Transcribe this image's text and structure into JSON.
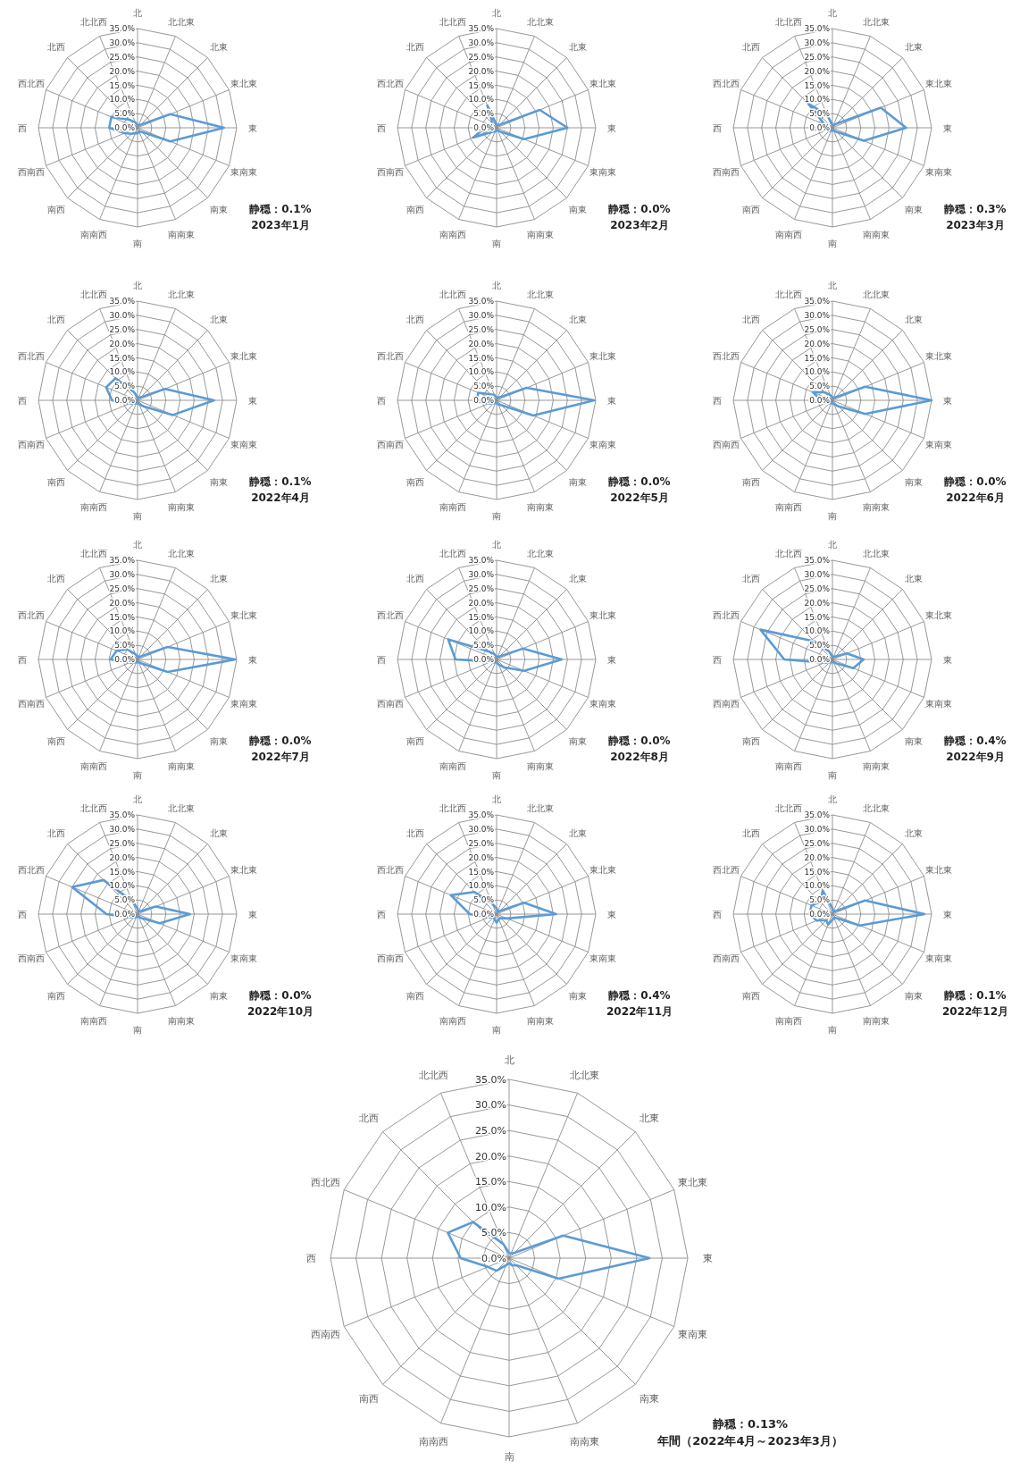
{
  "chart_data": [
    {
      "type": "radar",
      "categories": [
        "北",
        "北北東",
        "北東",
        "東北東",
        "東",
        "東南東",
        "南東",
        "南南東",
        "南",
        "南南西",
        "南西",
        "西南西",
        "西",
        "西北西",
        "北西",
        "北北西"
      ],
      "series": [
        {
          "color": "#5b9bd5",
          "values": [
            1,
            1,
            1.5,
            12.5,
            30.5,
            12.5,
            2,
            1.5,
            2,
            2,
            3,
            5,
            10,
            10,
            4,
            2
          ]
        }
      ],
      "ylim": [
        0,
        35
      ],
      "yticks": [
        {
          "value": 0,
          "label": "0.0%"
        },
        {
          "value": 5,
          "label": "5.0%"
        },
        {
          "value": 10,
          "label": "10.0%"
        },
        {
          "value": 15,
          "label": "15.0%"
        },
        {
          "value": 20,
          "label": "20.0%"
        },
        {
          "value": 25,
          "label": "25.0%"
        },
        {
          "value": 30,
          "label": "30.0%"
        },
        {
          "value": 35,
          "label": "35.0%"
        }
      ],
      "grid": true,
      "marker": "none",
      "annotations": [
        "静穏：0.1%",
        "2023年1月"
      ]
    },
    {
      "type": "radar",
      "categories": [
        "北",
        "北北東",
        "北東",
        "東北東",
        "東",
        "東南東",
        "南東",
        "南南東",
        "南",
        "南南西",
        "南西",
        "西南西",
        "西",
        "西北西",
        "北西",
        "北北西"
      ],
      "series": [
        {
          "color": "#5b9bd5",
          "values": [
            1,
            1,
            1.5,
            16.5,
            25,
            10.5,
            2,
            1,
            1,
            1.5,
            2,
            9,
            4,
            2,
            2,
            8.5
          ]
        }
      ],
      "ylim": [
        0,
        35
      ],
      "yticks": [
        {
          "value": 0,
          "label": "0.0%"
        },
        {
          "value": 5,
          "label": "5.0%"
        },
        {
          "value": 10,
          "label": "10.0%"
        },
        {
          "value": 15,
          "label": "15.0%"
        },
        {
          "value": 20,
          "label": "20.0%"
        },
        {
          "value": 25,
          "label": "25.0%"
        },
        {
          "value": 30,
          "label": "30.0%"
        },
        {
          "value": 35,
          "label": "35.0%"
        }
      ],
      "grid": true,
      "marker": "none",
      "annotations": [
        "静穏：0.0%",
        "2023年2月"
      ]
    },
    {
      "type": "radar",
      "categories": [
        "北",
        "北北東",
        "北東",
        "東北東",
        "東",
        "東南東",
        "南東",
        "南南東",
        "南",
        "南南西",
        "南西",
        "西南西",
        "西",
        "西北西",
        "北西",
        "北北西"
      ],
      "series": [
        {
          "color": "#5b9bd5",
          "values": [
            1,
            1,
            2,
            18.5,
            26,
            12,
            2,
            1,
            1,
            1,
            1.5,
            2,
            2,
            3,
            12,
            5
          ]
        }
      ],
      "ylim": [
        0,
        35
      ],
      "yticks": [
        {
          "value": 0,
          "label": "0.0%"
        },
        {
          "value": 5,
          "label": "5.0%"
        },
        {
          "value": 10,
          "label": "10.0%"
        },
        {
          "value": 15,
          "label": "15.0%"
        },
        {
          "value": 20,
          "label": "20.0%"
        },
        {
          "value": 25,
          "label": "25.0%"
        },
        {
          "value": 30,
          "label": "30.0%"
        },
        {
          "value": 35,
          "label": "35.0%"
        }
      ],
      "grid": true,
      "marker": "none",
      "annotations": [
        "静穏：0.3%",
        "2023年3月"
      ]
    },
    {
      "type": "radar",
      "categories": [
        "北",
        "北北東",
        "北東",
        "東北東",
        "東",
        "東南東",
        "南東",
        "南南東",
        "南",
        "南南西",
        "南西",
        "西南西",
        "西",
        "西北西",
        "北西",
        "北北西"
      ],
      "series": [
        {
          "color": "#5b9bd5",
          "values": [
            1,
            1,
            1.5,
            10.5,
            27,
            13.5,
            3,
            1.5,
            1,
            1,
            1.5,
            3,
            9,
            12,
            11,
            3
          ]
        }
      ],
      "ylim": [
        0,
        35
      ],
      "yticks": [
        {
          "value": 0,
          "label": "0.0%"
        },
        {
          "value": 5,
          "label": "5.0%"
        },
        {
          "value": 10,
          "label": "10.0%"
        },
        {
          "value": 15,
          "label": "15.0%"
        },
        {
          "value": 20,
          "label": "20.0%"
        },
        {
          "value": 25,
          "label": "25.0%"
        },
        {
          "value": 30,
          "label": "30.0%"
        },
        {
          "value": 35,
          "label": "35.0%"
        }
      ],
      "grid": true,
      "marker": "none",
      "annotations": [
        "静穏：0.1%",
        "2022年4月"
      ]
    },
    {
      "type": "radar",
      "categories": [
        "北",
        "北北東",
        "北東",
        "東北東",
        "東",
        "東南東",
        "南東",
        "南南東",
        "南",
        "南南西",
        "南西",
        "西南西",
        "西",
        "西北西",
        "北西",
        "北北西"
      ],
      "series": [
        {
          "color": "#5b9bd5",
          "values": [
            1,
            1,
            1.5,
            11.5,
            34.5,
            14,
            2.5,
            1.5,
            1,
            1,
            1.5,
            3,
            7,
            7,
            3,
            2
          ]
        }
      ],
      "ylim": [
        0,
        35
      ],
      "yticks": [
        {
          "value": 0,
          "label": "0.0%"
        },
        {
          "value": 5,
          "label": "5.0%"
        },
        {
          "value": 10,
          "label": "10.0%"
        },
        {
          "value": 15,
          "label": "15.0%"
        },
        {
          "value": 20,
          "label": "20.0%"
        },
        {
          "value": 25,
          "label": "25.0%"
        },
        {
          "value": 30,
          "label": "30.0%"
        },
        {
          "value": 35,
          "label": "35.0%"
        }
      ],
      "grid": true,
      "marker": "none",
      "annotations": [
        "静穏：0.0%",
        "2022年5月"
      ]
    },
    {
      "type": "radar",
      "categories": [
        "北",
        "北北東",
        "北東",
        "東北東",
        "東",
        "東南東",
        "南東",
        "南南東",
        "南",
        "南南西",
        "南西",
        "西南西",
        "西",
        "西北西",
        "北西",
        "北北西"
      ],
      "series": [
        {
          "color": "#5b9bd5",
          "values": [
            1,
            1,
            1.5,
            12.5,
            35,
            12.5,
            3,
            1.5,
            1,
            1,
            1.5,
            2,
            4,
            7.5,
            4,
            2
          ]
        }
      ],
      "ylim": [
        0,
        35
      ],
      "yticks": [
        {
          "value": 0,
          "label": "0.0%"
        },
        {
          "value": 5,
          "label": "5.0%"
        },
        {
          "value": 10,
          "label": "10.0%"
        },
        {
          "value": 15,
          "label": "15.0%"
        },
        {
          "value": 20,
          "label": "20.0%"
        },
        {
          "value": 25,
          "label": "25.0%"
        },
        {
          "value": 30,
          "label": "30.0%"
        },
        {
          "value": 35,
          "label": "35.0%"
        }
      ],
      "grid": true,
      "marker": "none",
      "annotations": [
        "静穏：0.0%",
        "2022年6月"
      ]
    },
    {
      "type": "radar",
      "categories": [
        "北",
        "北北東",
        "北東",
        "東北東",
        "東",
        "東南東",
        "南東",
        "南南東",
        "南",
        "南南西",
        "南西",
        "西南西",
        "西",
        "西北西",
        "北西",
        "北北西"
      ],
      "series": [
        {
          "color": "#5b9bd5",
          "values": [
            1,
            1,
            1.5,
            11.5,
            34.5,
            11.5,
            2,
            1,
            1,
            1,
            1.5,
            3,
            9.5,
            8,
            5,
            2
          ]
        }
      ],
      "ylim": [
        0,
        35
      ],
      "yticks": [
        {
          "value": 0,
          "label": "0.0%"
        },
        {
          "value": 5,
          "label": "5.0%"
        },
        {
          "value": 10,
          "label": "10.0%"
        },
        {
          "value": 15,
          "label": "15.0%"
        },
        {
          "value": 20,
          "label": "20.0%"
        },
        {
          "value": 25,
          "label": "25.0%"
        },
        {
          "value": 30,
          "label": "30.0%"
        },
        {
          "value": 35,
          "label": "35.0%"
        }
      ],
      "grid": true,
      "marker": "none",
      "annotations": [
        "静穏：0.0%",
        "2022年7月"
      ]
    },
    {
      "type": "radar",
      "categories": [
        "北",
        "北北東",
        "北東",
        "東北東",
        "東",
        "東南東",
        "南東",
        "南南東",
        "南",
        "南南西",
        "南西",
        "西南西",
        "西",
        "西北西",
        "北西",
        "北北西"
      ],
      "series": [
        {
          "color": "#5b9bd5",
          "values": [
            1,
            1,
            1.5,
            10,
            23,
            10.5,
            4,
            2,
            1,
            1,
            1.5,
            2,
            14.5,
            18.5,
            4,
            2
          ]
        }
      ],
      "ylim": [
        0,
        35
      ],
      "yticks": [
        {
          "value": 0,
          "label": "0.0%"
        },
        {
          "value": 5,
          "label": "5.0%"
        },
        {
          "value": 10,
          "label": "10.0%"
        },
        {
          "value": 15,
          "label": "15.0%"
        },
        {
          "value": 20,
          "label": "20.0%"
        },
        {
          "value": 25,
          "label": "25.0%"
        },
        {
          "value": 30,
          "label": "30.0%"
        },
        {
          "value": 35,
          "label": "35.0%"
        }
      ],
      "grid": true,
      "marker": "none",
      "annotations": [
        "静穏：0.0%",
        "2022年8月"
      ]
    },
    {
      "type": "radar",
      "categories": [
        "北",
        "北北東",
        "北東",
        "東北東",
        "東",
        "東南東",
        "南東",
        "南南東",
        "南",
        "南南西",
        "南西",
        "西南西",
        "西",
        "西北西",
        "北西",
        "北北西"
      ],
      "series": [
        {
          "color": "#5b9bd5",
          "values": [
            1,
            1,
            1.5,
            5.5,
            11,
            8,
            2,
            1,
            1,
            1,
            1.5,
            3,
            17,
            27.5,
            9,
            3
          ]
        }
      ],
      "ylim": [
        0,
        35
      ],
      "yticks": [
        {
          "value": 0,
          "label": "0.0%"
        },
        {
          "value": 5,
          "label": "5.0%"
        },
        {
          "value": 10,
          "label": "10.0%"
        },
        {
          "value": 15,
          "label": "15.0%"
        },
        {
          "value": 20,
          "label": "20.0%"
        },
        {
          "value": 25,
          "label": "25.0%"
        },
        {
          "value": 30,
          "label": "30.0%"
        },
        {
          "value": 35,
          "label": "35.0%"
        }
      ],
      "grid": true,
      "marker": "none",
      "annotations": [
        "静穏：0.4%",
        "2022年9月"
      ]
    },
    {
      "type": "radar",
      "categories": [
        "北",
        "北北東",
        "北東",
        "東北東",
        "東",
        "東南東",
        "南東",
        "南南東",
        "南",
        "南南西",
        "南西",
        "西南西",
        "西",
        "西北西",
        "北西",
        "北北西"
      ],
      "series": [
        {
          "color": "#5b9bd5",
          "values": [
            2,
            1,
            1.5,
            7,
            18.5,
            8.5,
            2,
            1,
            1,
            1,
            1.5,
            3,
            11,
            25,
            17,
            5
          ]
        }
      ],
      "ylim": [
        0,
        35
      ],
      "yticks": [
        {
          "value": 0,
          "label": "0.0%"
        },
        {
          "value": 5,
          "label": "5.0%"
        },
        {
          "value": 10,
          "label": "10.0%"
        },
        {
          "value": 15,
          "label": "15.0%"
        },
        {
          "value": 20,
          "label": "20.0%"
        },
        {
          "value": 25,
          "label": "25.0%"
        },
        {
          "value": 30,
          "label": "30.0%"
        },
        {
          "value": 35,
          "label": "35.0%"
        }
      ],
      "grid": true,
      "marker": "none",
      "annotations": [
        "静穏：0.0%",
        "2022年10月"
      ]
    },
    {
      "type": "radar",
      "categories": [
        "北",
        "北北東",
        "北東",
        "東北東",
        "東",
        "東南東",
        "南東",
        "南南東",
        "南",
        "南南西",
        "南西",
        "西南西",
        "西",
        "西北西",
        "北西",
        "北北西"
      ],
      "series": [
        {
          "color": "#5b9bd5",
          "values": [
            2,
            1,
            1.5,
            10.5,
            21,
            4,
            2,
            2,
            3,
            2,
            1.5,
            3,
            9.5,
            17.5,
            11,
            4
          ]
        }
      ],
      "ylim": [
        0,
        35
      ],
      "yticks": [
        {
          "value": 0,
          "label": "0.0%"
        },
        {
          "value": 5,
          "label": "5.0%"
        },
        {
          "value": 10,
          "label": "10.0%"
        },
        {
          "value": 15,
          "label": "15.0%"
        },
        {
          "value": 20,
          "label": "20.0%"
        },
        {
          "value": 25,
          "label": "25.0%"
        },
        {
          "value": 30,
          "label": "30.0%"
        },
        {
          "value": 35,
          "label": "35.0%"
        }
      ],
      "grid": true,
      "marker": "none",
      "annotations": [
        "静穏：0.4%",
        "2022年11月"
      ]
    },
    {
      "type": "radar",
      "categories": [
        "北",
        "北北東",
        "北東",
        "東北東",
        "東",
        "東南東",
        "南東",
        "南南東",
        "南",
        "南南西",
        "南西",
        "西南西",
        "西",
        "西北西",
        "北西",
        "北北西"
      ],
      "series": [
        {
          "color": "#5b9bd5",
          "values": [
            2,
            1,
            1.5,
            12.5,
            32.5,
            10.5,
            2,
            1.5,
            2,
            4,
            3,
            6,
            8,
            8,
            6,
            9
          ]
        }
      ],
      "ylim": [
        0,
        35
      ],
      "yticks": [
        {
          "value": 0,
          "label": "0.0%"
        },
        {
          "value": 5,
          "label": "5.0%"
        },
        {
          "value": 10,
          "label": "10.0%"
        },
        {
          "value": 15,
          "label": "15.0%"
        },
        {
          "value": 20,
          "label": "20.0%"
        },
        {
          "value": 25,
          "label": "25.0%"
        },
        {
          "value": 30,
          "label": "30.0%"
        },
        {
          "value": 35,
          "label": "35.0%"
        }
      ],
      "grid": true,
      "marker": "none",
      "annotations": [
        "静穏：0.1%",
        "2022年12月"
      ]
    },
    {
      "type": "radar",
      "categories": [
        "北",
        "北北東",
        "北東",
        "東北東",
        "東",
        "東南東",
        "南東",
        "南南東",
        "南",
        "南南西",
        "南西",
        "西南西",
        "西",
        "西北西",
        "北西",
        "北北西"
      ],
      "series": [
        {
          "color": "#5b9bd5",
          "values": [
            1,
            1,
            1.5,
            11.5,
            27.5,
            10.5,
            2,
            1.5,
            1,
            1.5,
            3.5,
            4.5,
            9.5,
            13,
            10,
            3
          ]
        }
      ],
      "ylim": [
        0,
        35
      ],
      "yticks": [
        {
          "value": 0,
          "label": "0.0%"
        },
        {
          "value": 5,
          "label": "5.0%"
        },
        {
          "value": 10,
          "label": "10.0%"
        },
        {
          "value": 15,
          "label": "15.0%"
        },
        {
          "value": 20,
          "label": "20.0%"
        },
        {
          "value": 25,
          "label": "25.0%"
        },
        {
          "value": 30,
          "label": "30.0%"
        },
        {
          "value": 35,
          "label": "35.0%"
        }
      ],
      "grid": true,
      "marker": "none",
      "annotations": [
        "静穏：0.13%",
        "年間（2022年4月～2023年3月）"
      ]
    }
  ]
}
